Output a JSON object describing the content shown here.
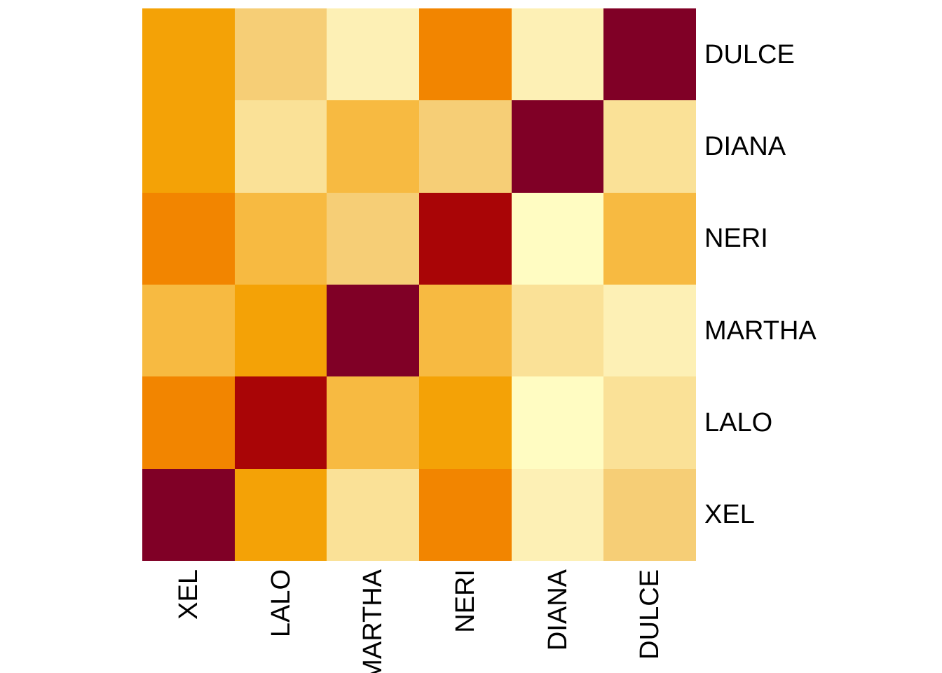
{
  "figure": {
    "background_color": "#FFFFFF",
    "label_color": "#000000"
  },
  "chart_data": {
    "type": "heatmap",
    "title": "",
    "xlabel": "",
    "ylabel": "",
    "legend": "none",
    "grid": "off",
    "rows_top_to_bottom": [
      "DULCE",
      "DIANA",
      "NERI",
      "MARTHA",
      "LALO",
      "XEL"
    ],
    "columns_left_to_right": [
      "XEL",
      "LALO",
      "MARTHA",
      "NERI",
      "DIANA",
      "DULCE"
    ],
    "palette_low_to_high": [
      "#FFFCC2",
      "#FDF0B5",
      "#FAE197",
      "#F6CE76",
      "#F7BA41",
      "#F4A206",
      "#F28500",
      "#A90506",
      "#800026"
    ],
    "intensity_levels_1_to_9": [
      [
        6,
        4,
        2,
        7,
        2,
        9
      ],
      [
        6,
        3,
        5,
        4,
        9,
        3
      ],
      [
        7,
        5,
        4,
        8,
        1,
        5
      ],
      [
        5,
        6,
        9,
        5,
        3,
        2
      ],
      [
        7,
        8,
        5,
        6,
        1,
        3
      ],
      [
        9,
        6,
        3,
        7,
        2,
        4
      ]
    ],
    "cell_colors": [
      [
        "#F4A206",
        "#F6CE76",
        "#FDF0B5",
        "#F28500",
        "#FDF0B5",
        "#800026"
      ],
      [
        "#F4A206",
        "#FAE197",
        "#F7BA41",
        "#F6CE76",
        "#800026",
        "#FAE197"
      ],
      [
        "#F28500",
        "#F7BA41",
        "#F6CE76",
        "#A90506",
        "#FFFCC2",
        "#F7BA41"
      ],
      [
        "#F7BA41",
        "#F4A206",
        "#800026",
        "#F7BA41",
        "#FAE197",
        "#FDF0B5"
      ],
      [
        "#F28500",
        "#A90506",
        "#F7BA41",
        "#F4A206",
        "#FFFCC2",
        "#FAE197"
      ],
      [
        "#800026",
        "#F4A206",
        "#FAE197",
        "#F28500",
        "#FDF0B5",
        "#F6CE76"
      ]
    ]
  }
}
